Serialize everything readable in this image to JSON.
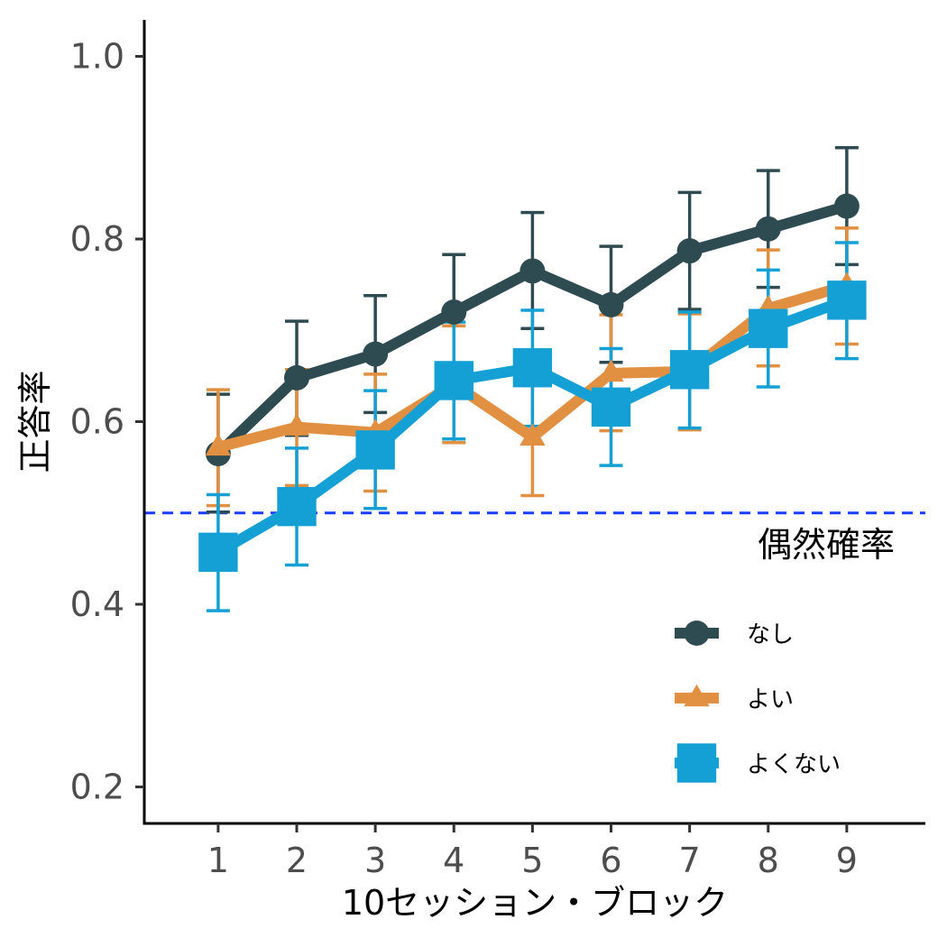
{
  "chart_data": {
    "type": "line",
    "xlabel": "10セッション・ブロック",
    "ylabel": "正答率",
    "x": [
      1,
      2,
      3,
      4,
      5,
      6,
      7,
      8,
      9
    ],
    "x_tick_labels": [
      "1",
      "2",
      "3",
      "4",
      "5",
      "6",
      "7",
      "8",
      "9"
    ],
    "y_ticks": [
      0.2,
      0.4,
      0.6,
      0.8,
      1.0
    ],
    "y_tick_labels": [
      "0.2",
      "0.4",
      "0.6",
      "0.8",
      "1.0"
    ],
    "xlim": [
      0.06,
      10.0
    ],
    "ylim": [
      0.16,
      1.04
    ],
    "grid": false,
    "reference_line": {
      "y": 0.5,
      "label": "偶然確率",
      "color": "#1a3cff",
      "style": "dashed"
    },
    "legend_position": "bottom-right",
    "series": [
      {
        "name": "なし",
        "color": "#2f4b52",
        "marker": "circle",
        "values": [
          0.565,
          0.648,
          0.674,
          0.72,
          0.765,
          0.728,
          0.787,
          0.811,
          0.836
        ],
        "upper": [
          0.63,
          0.71,
          0.738,
          0.783,
          0.829,
          0.792,
          0.851,
          0.875,
          0.9
        ],
        "lower": [
          0.501,
          0.585,
          0.61,
          0.657,
          0.702,
          0.665,
          0.723,
          0.747,
          0.772
        ]
      },
      {
        "name": "よい",
        "color": "#e09040",
        "marker": "triangle",
        "values": [
          0.572,
          0.594,
          0.588,
          0.641,
          0.583,
          0.653,
          0.655,
          0.724,
          0.749
        ],
        "upper": [
          0.635,
          0.657,
          0.652,
          0.705,
          0.646,
          0.717,
          0.718,
          0.788,
          0.812
        ],
        "lower": [
          0.508,
          0.53,
          0.524,
          0.577,
          0.519,
          0.59,
          0.591,
          0.661,
          0.685
        ]
      },
      {
        "name": "よくない",
        "color": "#14a0d4",
        "marker": "square",
        "values": [
          0.457,
          0.507,
          0.569,
          0.645,
          0.659,
          0.616,
          0.657,
          0.702,
          0.733
        ],
        "upper": [
          0.52,
          0.571,
          0.634,
          0.709,
          0.722,
          0.68,
          0.72,
          0.766,
          0.796
        ],
        "lower": [
          0.393,
          0.443,
          0.505,
          0.581,
          0.595,
          0.552,
          0.593,
          0.638,
          0.669
        ]
      }
    ]
  }
}
